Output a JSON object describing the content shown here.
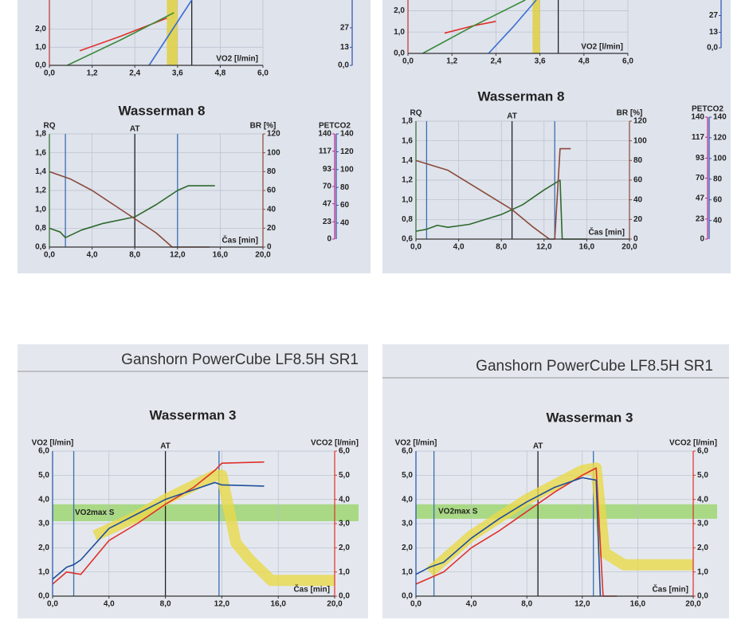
{
  "chart_data": [
    {
      "type": "line",
      "xlabel": "VO2 [l/min]",
      "xlim": [
        0,
        6
      ],
      "ylim": [
        0,
        3.6
      ],
      "xticks": [
        {
          "value": 0,
          "label": "0,0"
        },
        {
          "value": 1.2,
          "label": "1,2"
        },
        {
          "value": 2.4,
          "label": "2,4"
        },
        {
          "value": 3.6,
          "label": "3,6"
        },
        {
          "value": 4.8,
          "label": "4,8"
        },
        {
          "value": 6,
          "label": "6,0"
        }
      ],
      "yticks": [
        {
          "value": 0,
          "label": "0,0"
        },
        {
          "value": 1,
          "label": "1,0"
        },
        {
          "value": 2,
          "label": "2,0"
        }
      ],
      "ycolor": "#c0302a",
      "grid": true,
      "xband": [
        3.3,
        3.6
      ],
      "vlines": [
        4.0
      ],
      "vline_colors": [
        "#222222"
      ],
      "series": [
        {
          "color": "#e0302a",
          "x": [
            0.85,
            2.0,
            3.3
          ],
          "values": [
            0.8,
            1.6,
            2.6
          ]
        },
        {
          "color": "#3a8a3a",
          "x": [
            0.5,
            2.0,
            3.5
          ],
          "values": [
            0,
            1.4,
            2.9
          ]
        },
        {
          "color": "#3a6fd0",
          "x": [
            2.8,
            3.4,
            4.0
          ],
          "values": [
            0,
            1.8,
            3.6
          ]
        }
      ]
    },
    {
      "type": "line",
      "title": "Wasserman 8",
      "ylabel": "RQ",
      "y2label": "BR [%]",
      "xlabel": "Čas [min]",
      "xlim": [
        0,
        20
      ],
      "ylim": [
        0.6,
        1.8
      ],
      "y2lim": [
        0,
        120
      ],
      "xticks": [
        {
          "value": 0,
          "label": "0,0"
        },
        {
          "value": 4,
          "label": "4,0"
        },
        {
          "value": 8,
          "label": "8,0"
        },
        {
          "value": 12,
          "label": "12,0"
        },
        {
          "value": 16,
          "label": "16,0"
        },
        {
          "value": 20,
          "label": "20,0"
        }
      ],
      "yticks": [
        {
          "value": 0.6,
          "label": "0,6"
        },
        {
          "value": 0.8,
          "label": "0,8"
        },
        {
          "value": 1.0,
          "label": "1,0"
        },
        {
          "value": 1.2,
          "label": "1,2"
        },
        {
          "value": 1.4,
          "label": "1,4"
        },
        {
          "value": 1.6,
          "label": "1,6"
        },
        {
          "value": 1.8,
          "label": "1,8"
        }
      ],
      "y2ticks": [
        0,
        20,
        40,
        60,
        80,
        100,
        120
      ],
      "ycolor": "#2d6a2d",
      "y2color": "#8a4a3a",
      "grid": true,
      "vlines": [
        1.5,
        8,
        12
      ],
      "vline_colors": [
        "#3a6fb0",
        "#222222",
        "#3a6fb0"
      ],
      "at_label": "AT",
      "series": [
        {
          "color": "#2d6a2d",
          "x": [
            0,
            1,
            1.5,
            3,
            5,
            8,
            10,
            12,
            13,
            15.5
          ],
          "values": [
            0.8,
            0.76,
            0.7,
            0.78,
            0.85,
            0.92,
            1.05,
            1.2,
            1.25,
            1.25
          ]
        },
        {
          "color": "#8a4a3a",
          "axis": "y2",
          "x": [
            0,
            2,
            4,
            6,
            8,
            10,
            11.5,
            15
          ],
          "values": [
            80,
            72,
            60,
            45,
            30,
            15,
            0,
            0
          ]
        }
      ]
    },
    {
      "type": "line",
      "ylabel": "PETCO2",
      "ylim": [
        0,
        140
      ],
      "y2lim": [
        22,
        140
      ],
      "yticks": [
        0,
        23,
        47,
        70,
        93,
        117,
        140
      ],
      "y2ticks": [
        40,
        60,
        80,
        100,
        120,
        140
      ],
      "ycolor": "#c0208a",
      "y2color": "#2a4fb0"
    },
    {
      "type": "line",
      "ylim": [
        0,
        47
      ],
      "yticks": [
        {
          "value": 0,
          "label": "0,0"
        },
        13,
        27
      ],
      "ycolor": "#2a4fb0"
    },
    {
      "type": "line",
      "xlabel": "VO2 [l/min]",
      "xlim": [
        0,
        6
      ],
      "ylim": [
        0,
        2.5
      ],
      "xticks": [
        {
          "value": 0,
          "label": "0,0"
        },
        {
          "value": 1.2,
          "label": "1,2"
        },
        {
          "value": 2.4,
          "label": "2,4"
        },
        {
          "value": 3.6,
          "label": "3,6"
        },
        {
          "value": 4.8,
          "label": "4,8"
        },
        {
          "value": 6,
          "label": "6,0"
        }
      ],
      "yticks": [
        {
          "value": 0,
          "label": "0,0"
        },
        {
          "value": 1,
          "label": "1,0"
        },
        {
          "value": 2,
          "label": "2,0"
        }
      ],
      "ycolor": "#c0302a",
      "grid": true,
      "xband": [
        3.4,
        3.6
      ],
      "vlines": [
        4.1
      ],
      "vline_colors": [
        "#222222"
      ],
      "series": [
        {
          "color": "#e0302a",
          "x": [
            1.0,
            1.8,
            2.4
          ],
          "values": [
            0.95,
            1.3,
            1.5
          ]
        },
        {
          "color": "#3a8a3a",
          "x": [
            0.4,
            1.8,
            3.2
          ],
          "values": [
            0,
            1.3,
            2.5
          ]
        },
        {
          "color": "#3a6fd0",
          "x": [
            2.2,
            2.9,
            3.5
          ],
          "values": [
            0,
            1.3,
            2.5
          ]
        }
      ]
    },
    {
      "type": "line",
      "title": "Wasserman 8",
      "ylabel": "RQ",
      "y2label": "BR [%]",
      "xlabel": "Čas [min]",
      "xlim": [
        0,
        20
      ],
      "ylim": [
        0.6,
        1.8
      ],
      "y2lim": [
        0,
        120
      ],
      "xticks": [
        {
          "value": 0,
          "label": "0,0"
        },
        {
          "value": 4,
          "label": "4,0"
        },
        {
          "value": 8,
          "label": "8,0"
        },
        {
          "value": 12,
          "label": "12,0"
        },
        {
          "value": 16,
          "label": "16,0"
        },
        {
          "value": 20,
          "label": "20,0"
        }
      ],
      "yticks": [
        {
          "value": 0.6,
          "label": "0,6"
        },
        {
          "value": 0.8,
          "label": "0,8"
        },
        {
          "value": 1.0,
          "label": "1,0"
        },
        {
          "value": 1.2,
          "label": "1,2"
        },
        {
          "value": 1.4,
          "label": "1,4"
        },
        {
          "value": 1.6,
          "label": "1,6"
        },
        {
          "value": 1.8,
          "label": "1,8"
        }
      ],
      "y2ticks": [
        0,
        20,
        40,
        60,
        80,
        100,
        120
      ],
      "ycolor": "#2d6a2d",
      "y2color": "#8a4a3a",
      "grid": true,
      "vlines": [
        1,
        9,
        13
      ],
      "vline_colors": [
        "#3a6fb0",
        "#222222",
        "#3a6fb0"
      ],
      "at_label": "AT",
      "series": [
        {
          "color": "#2d6a2d",
          "x": [
            0,
            1,
            2,
            3,
            5,
            8,
            10,
            12,
            13.5,
            13.7,
            16
          ],
          "values": [
            0.68,
            0.7,
            0.74,
            0.72,
            0.75,
            0.85,
            0.95,
            1.1,
            1.2,
            0.6,
            0.6
          ]
        },
        {
          "color": "#8a4a3a",
          "axis": "y2",
          "x": [
            0,
            3,
            6,
            9,
            11,
            12.5,
            13,
            13.5,
            14.5
          ],
          "values": [
            80,
            70,
            50,
            30,
            12,
            0,
            0,
            92,
            92
          ]
        }
      ]
    },
    {
      "type": "line",
      "ylim": [
        0,
        40
      ],
      "yticks": [
        {
          "value": 0,
          "label": "0,0"
        },
        13,
        27
      ],
      "ycolor": "#2a4fb0"
    },
    {
      "type": "line",
      "ylabel": "PETCO2",
      "ylim": [
        0,
        140
      ],
      "y2lim": [
        22,
        140
      ],
      "yticks": [
        0,
        23,
        47,
        70,
        93,
        117,
        140
      ],
      "y2ticks": [
        40,
        60,
        80,
        100,
        120,
        140
      ],
      "ycolor": "#c0208a",
      "y2color": "#2a4fb0"
    },
    {
      "type": "line",
      "header": "Ganshorn PowerCube LF8.5H SR1",
      "title": "Wasserman 3",
      "ylabel": "VO2 [l/min]",
      "y2label": "VCO2 [l/min]",
      "xlabel": "Čas [min]",
      "xlim": [
        0,
        20
      ],
      "ylim": [
        0,
        6
      ],
      "y2lim": [
        0,
        6
      ],
      "xticks": [
        {
          "value": 0,
          "label": "0,0"
        },
        {
          "value": 4,
          "label": "4,0"
        },
        {
          "value": 8,
          "label": "8,0"
        },
        {
          "value": 12,
          "label": "12,0"
        },
        {
          "value": 16,
          "label": "16,0"
        },
        {
          "value": 20,
          "label": "20,0"
        }
      ],
      "yticks": [
        {
          "value": 0,
          "label": "0,0"
        },
        {
          "value": 1,
          "label": "1,0"
        },
        {
          "value": 2,
          "label": "2,0"
        },
        {
          "value": 3,
          "label": "3,0"
        },
        {
          "value": 4,
          "label": "4,0"
        },
        {
          "value": 5,
          "label": "5,0"
        },
        {
          "value": 6,
          "label": "6,0"
        }
      ],
      "y2ticks": [
        {
          "value": 0,
          "label": "0,0"
        },
        {
          "value": 1,
          "label": "1,0"
        },
        {
          "value": 2,
          "label": "2,0"
        },
        {
          "value": 3,
          "label": "3,0"
        },
        {
          "value": 4,
          "label": "4,0"
        },
        {
          "value": 5,
          "label": "5,0"
        },
        {
          "value": 6,
          "label": "6,0"
        }
      ],
      "ycolor": "#1f4fb0",
      "y2color": "#e0302a",
      "grid": true,
      "band": [
        3.1,
        3.8
      ],
      "band_label": "VO2max S",
      "band_color": "#9ad46a",
      "vlines": [
        1.5,
        8,
        11.8
      ],
      "vline_colors": [
        "#3a6fb0",
        "#222222",
        "#3a6fb0"
      ],
      "at_label": "AT",
      "series": [
        {
          "color": "#e8d84a",
          "width": 14,
          "x": [
            3,
            6,
            8,
            11.5,
            12,
            13,
            14,
            15.5,
            20
          ],
          "values": [
            2.5,
            3.3,
            4,
            5,
            5,
            2.2,
            1.5,
            0.65,
            0.65
          ]
        },
        {
          "color": "#e0302a",
          "axis": "y2",
          "x": [
            0,
            1,
            2,
            4,
            6,
            8,
            10,
            11.5,
            12,
            15
          ],
          "values": [
            0.5,
            1,
            0.9,
            2.3,
            3,
            3.8,
            4.5,
            5.2,
            5.5,
            5.55
          ]
        },
        {
          "color": "#1f4f9a",
          "x": [
            0,
            1,
            1.5,
            2,
            4,
            6,
            8,
            10,
            11.5,
            12,
            15
          ],
          "values": [
            0.7,
            1.2,
            1.3,
            1.5,
            2.8,
            3.4,
            4,
            4.4,
            4.7,
            4.6,
            4.55
          ]
        }
      ]
    },
    {
      "type": "line",
      "header": "Ganshorn PowerCube LF8.5H SR1",
      "title": "Wasserman 3",
      "ylabel": "VO2 [l/min]",
      "y2label": "VCO2 [l/min]",
      "xlabel": "Čas [min]",
      "xlim": [
        0,
        20
      ],
      "ylim": [
        0,
        6
      ],
      "y2lim": [
        0,
        6
      ],
      "xticks": [
        {
          "value": 0,
          "label": "0,0"
        },
        {
          "value": 4,
          "label": "4,0"
        },
        {
          "value": 8,
          "label": "8,0"
        },
        {
          "value": 12,
          "label": "12,0"
        },
        {
          "value": 16,
          "label": "16,0"
        },
        {
          "value": 20,
          "label": "20,0"
        }
      ],
      "yticks": [
        {
          "value": 0,
          "label": "0,0"
        },
        {
          "value": 1,
          "label": "1,0"
        },
        {
          "value": 2,
          "label": "2,0"
        },
        {
          "value": 3,
          "label": "3,0"
        },
        {
          "value": 4,
          "label": "4,0"
        },
        {
          "value": 5,
          "label": "5,0"
        },
        {
          "value": 6,
          "label": "6,0"
        }
      ],
      "y2ticks": [
        {
          "value": 0,
          "label": "0,0"
        },
        {
          "value": 1,
          "label": "1,0"
        },
        {
          "value": 2,
          "label": "2,0"
        },
        {
          "value": 3,
          "label": "3,0"
        },
        {
          "value": 4,
          "label": "4,0"
        },
        {
          "value": 5,
          "label": "5,0"
        },
        {
          "value": 6,
          "label": "6,0"
        }
      ],
      "ycolor": "#1f4fb0",
      "y2color": "#e0302a",
      "grid": true,
      "band": [
        3.2,
        3.8
      ],
      "band_label": "VO2max S",
      "band_color": "#9ad46a",
      "vlines": [
        1.3,
        8.8,
        12.8
      ],
      "vline_colors": [
        "#3a6fb0",
        "#222222",
        "#3a6fb0"
      ],
      "at_label": "AT",
      "series": [
        {
          "color": "#e8d84a",
          "width": 14,
          "x": [
            1,
            4,
            8,
            12,
            13,
            13.6,
            15,
            20
          ],
          "values": [
            1,
            2.5,
            4,
            5.2,
            5.3,
            1.8,
            1.3,
            1.3
          ]
        },
        {
          "color": "#e0302a",
          "axis": "y2",
          "x": [
            0,
            2,
            4,
            6,
            8,
            10,
            12,
            13,
            13.5,
            14.5
          ],
          "values": [
            0.5,
            1,
            2,
            2.7,
            3.5,
            4.3,
            5,
            5.3,
            0,
            0
          ]
        },
        {
          "color": "#1f4f9a",
          "x": [
            0,
            1,
            2,
            4,
            6,
            8,
            10,
            12,
            13,
            13.3
          ],
          "values": [
            0.9,
            1.2,
            1.4,
            2.4,
            3.2,
            3.9,
            4.5,
            4.9,
            4.8,
            0
          ]
        }
      ]
    }
  ]
}
